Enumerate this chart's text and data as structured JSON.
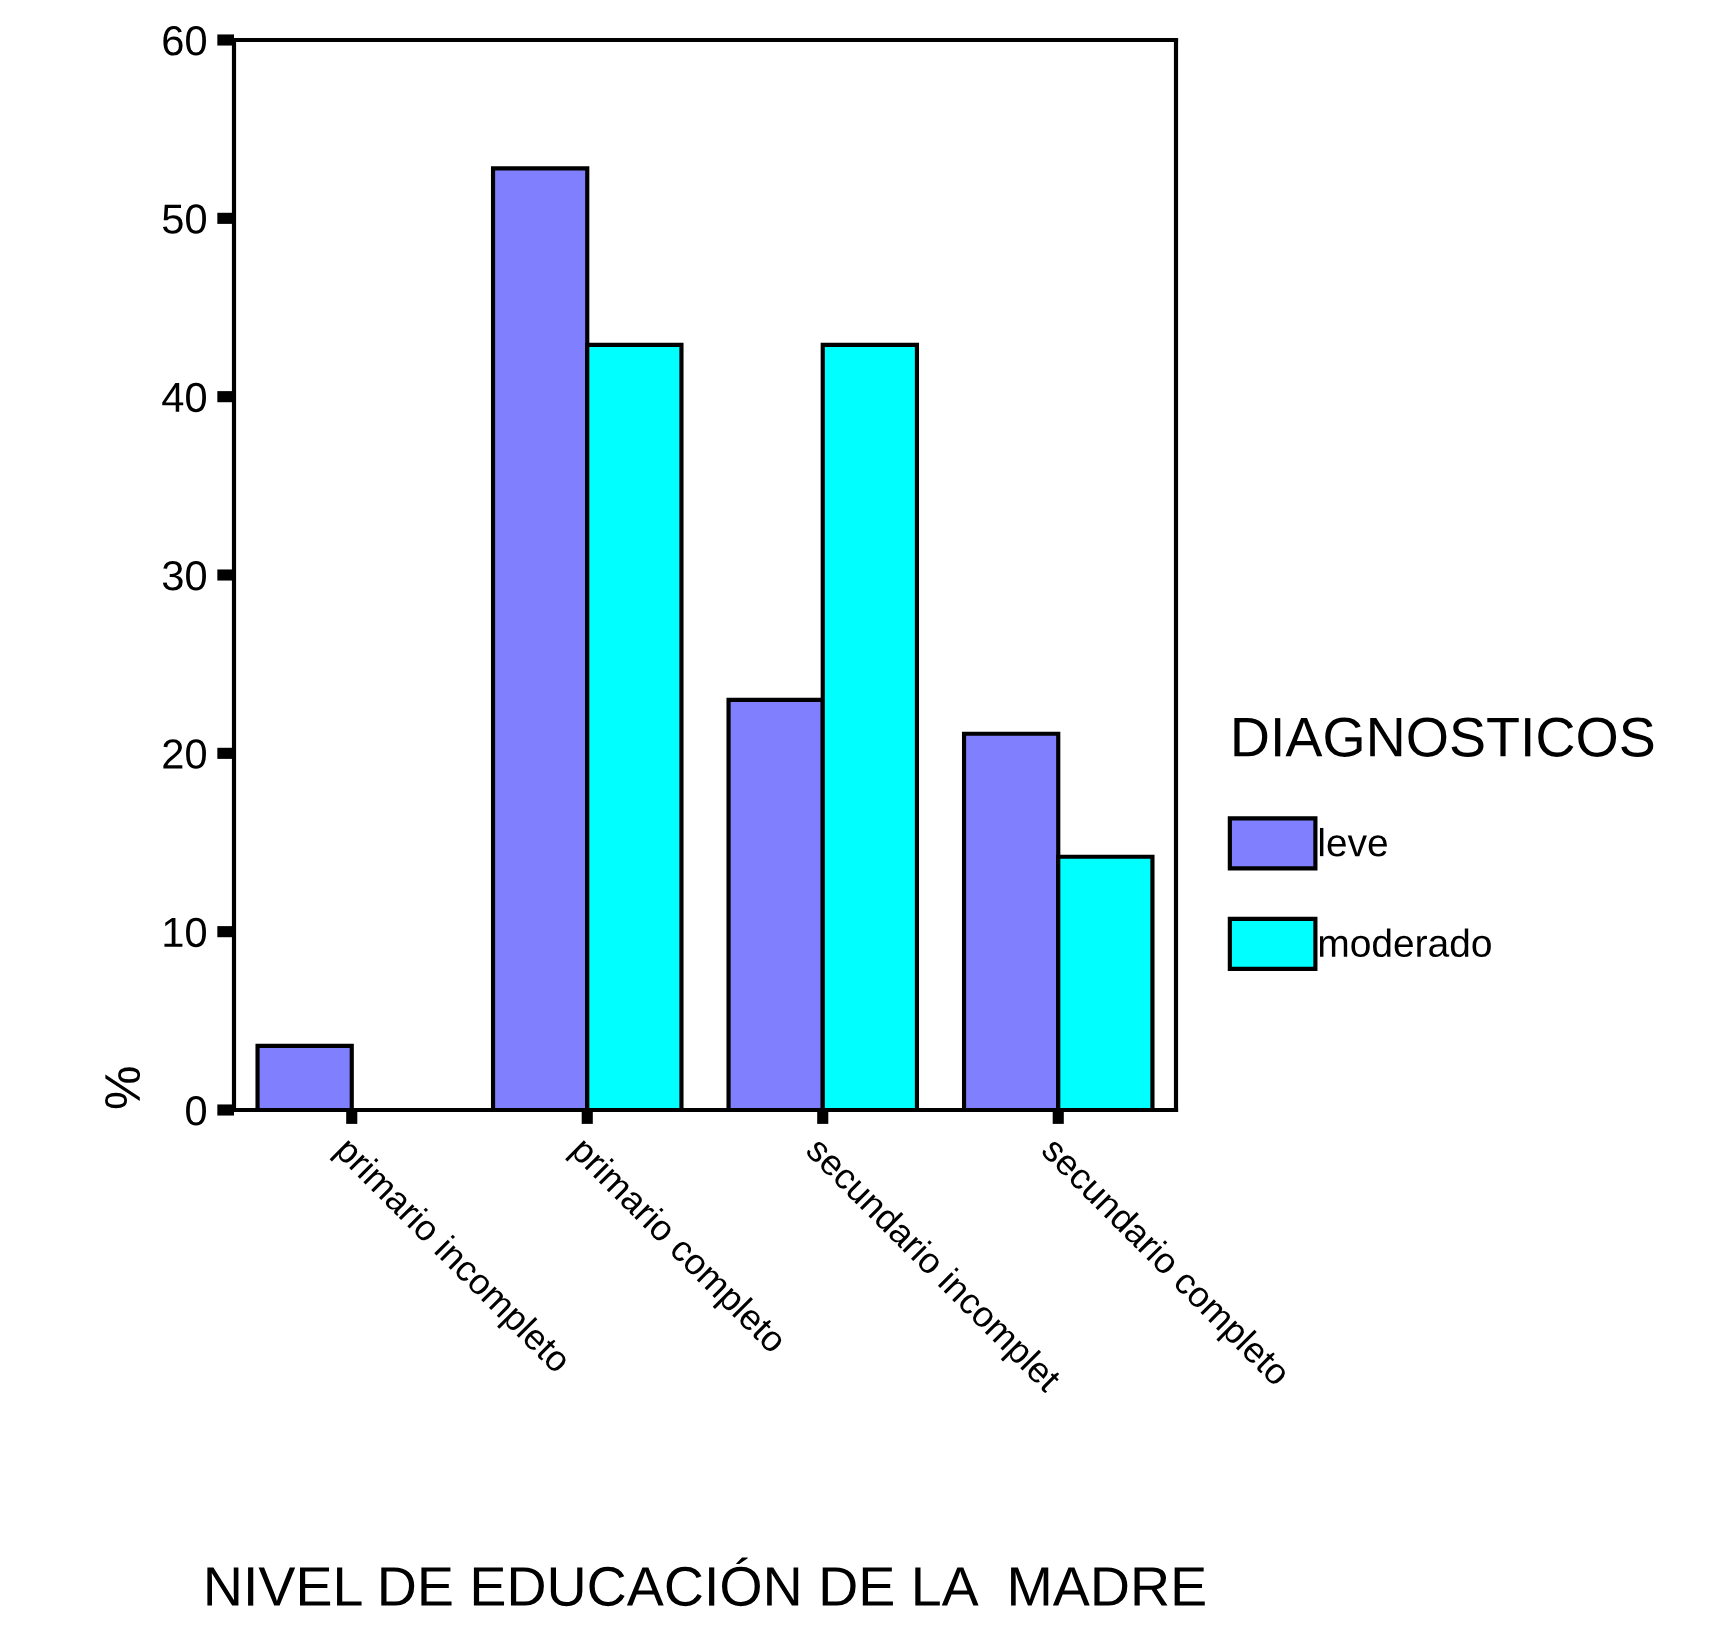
{
  "chart_data": {
    "type": "bar",
    "xlabel": "NIVEL DE EDUCACIÓN DE LA  MADRE",
    "ylabel": "%",
    "legend_title": "DIAGNOSTICOS",
    "categories": [
      "primario incompleto",
      "primario completo",
      "secundario incomplet",
      "secundario completo"
    ],
    "series": [
      {
        "name": "leve",
        "color": "#8080ff",
        "values": [
          3.6,
          52.8,
          23.0,
          21.1
        ]
      },
      {
        "name": "moderado",
        "color": "#00ffff",
        "values": [
          0,
          42.9,
          42.9,
          14.2
        ]
      }
    ],
    "ylim": [
      0,
      60
    ],
    "yticks": [
      0,
      10,
      20,
      30,
      40,
      50,
      60
    ],
    "grid": false,
    "legend": "right"
  }
}
